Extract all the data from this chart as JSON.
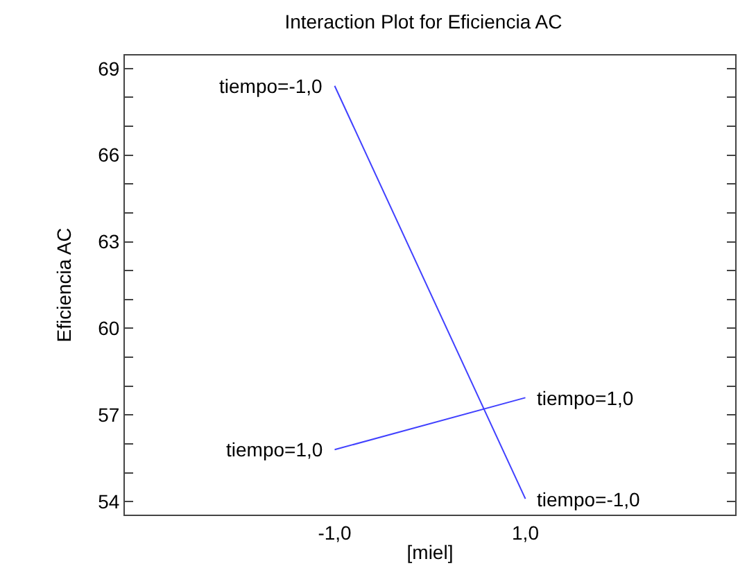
{
  "chart_data": {
    "type": "line",
    "title": "Interaction Plot for Eficiencia AC",
    "xlabel": "[miel]",
    "ylabel": "Eficiencia AC",
    "x": [
      -1,
      1
    ],
    "series": [
      {
        "name": "tiempo=-1,0",
        "color": "#4040ff",
        "values": [
          68.4,
          54.1
        ]
      },
      {
        "name": "tiempo=1,0",
        "color": "#4040ff",
        "values": [
          55.8,
          57.6
        ]
      }
    ],
    "xlim": [
      -3.2,
      3.2
    ],
    "ylim": [
      53.55,
      69.45
    ],
    "xticks": [
      {
        "value": -1,
        "label": "-1,0"
      },
      {
        "value": 1,
        "label": "1,0"
      }
    ],
    "yticks": [
      54,
      {
        "value": 55,
        "label": null
      },
      {
        "value": 56,
        "label": null
      },
      57,
      {
        "value": 58,
        "label": null
      },
      {
        "value": 59,
        "label": null
      },
      60,
      {
        "value": 61,
        "label": null
      },
      {
        "value": 62,
        "label": null
      },
      63,
      {
        "value": 64,
        "label": null
      },
      {
        "value": 65,
        "label": null
      },
      66,
      {
        "value": 67,
        "label": null
      },
      {
        "value": 68,
        "label": null
      },
      69
    ],
    "legend": false,
    "marker": "none",
    "line_style": "solid"
  }
}
